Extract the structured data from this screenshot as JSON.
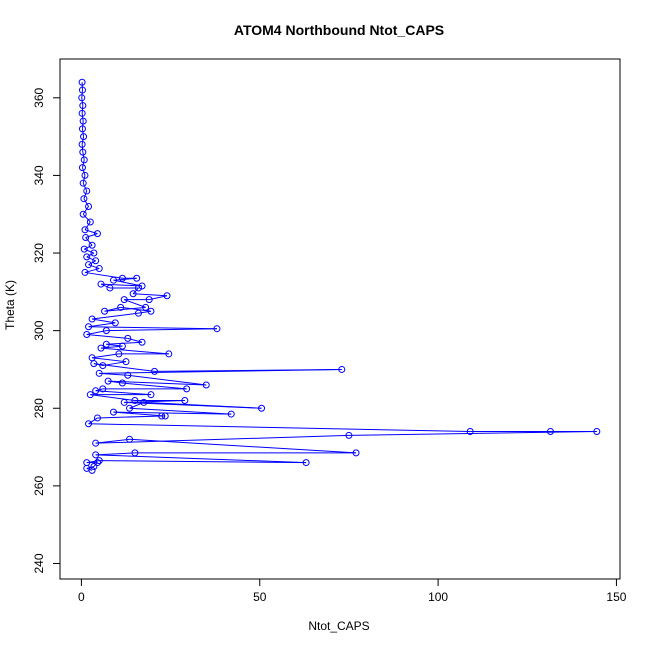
{
  "chart_data": {
    "type": "scatter",
    "title": "ATOM4 Northbound Ntot_CAPS",
    "xlabel": "Ntot_CAPS",
    "ylabel": "Theta (K)",
    "xlim": [
      -6,
      151
    ],
    "ylim": [
      236,
      370
    ],
    "xticks": [
      0,
      50,
      100,
      150
    ],
    "yticks": [
      240,
      260,
      280,
      300,
      320,
      340,
      360
    ],
    "marker": "open-circle",
    "connected": true,
    "series_color": "#0000ff",
    "grid": false,
    "series": [
      {
        "name": "",
        "points": [
          [
            0.2,
            364
          ],
          [
            0.3,
            362
          ],
          [
            0.1,
            360
          ],
          [
            0.4,
            358
          ],
          [
            0.2,
            356
          ],
          [
            0.5,
            354
          ],
          [
            0.3,
            352
          ],
          [
            0.6,
            350
          ],
          [
            0.2,
            348
          ],
          [
            0.4,
            346
          ],
          [
            0.8,
            344
          ],
          [
            0.3,
            342
          ],
          [
            1.0,
            340
          ],
          [
            0.5,
            338
          ],
          [
            1.5,
            336
          ],
          [
            0.7,
            334
          ],
          [
            2.0,
            332
          ],
          [
            0.5,
            330
          ],
          [
            2.5,
            328
          ],
          [
            1.0,
            326
          ],
          [
            4.5,
            325
          ],
          [
            1.2,
            324
          ],
          [
            3.0,
            322
          ],
          [
            0.8,
            321
          ],
          [
            3.5,
            320
          ],
          [
            1.5,
            319
          ],
          [
            4.0,
            318
          ],
          [
            2.0,
            317
          ],
          [
            5.0,
            316
          ],
          [
            1.0,
            315
          ],
          [
            11.5,
            313.5
          ],
          [
            15.5,
            313.5
          ],
          [
            9.0,
            313
          ],
          [
            17.0,
            311.5
          ],
          [
            5.5,
            312
          ],
          [
            8.0,
            311
          ],
          [
            16.0,
            311
          ],
          [
            14.5,
            309.5
          ],
          [
            24.0,
            309
          ],
          [
            19.0,
            308
          ],
          [
            12.0,
            308
          ],
          [
            18.0,
            306
          ],
          [
            6.5,
            305
          ],
          [
            11.0,
            306
          ],
          [
            19.5,
            305
          ],
          [
            16.0,
            304.5
          ],
          [
            3.0,
            303
          ],
          [
            9.5,
            302
          ],
          [
            2.0,
            301
          ],
          [
            38.0,
            300.5
          ],
          [
            7.0,
            300
          ],
          [
            1.5,
            299
          ],
          [
            13.0,
            298
          ],
          [
            17.0,
            297
          ],
          [
            7.0,
            296.5
          ],
          [
            11.5,
            296
          ],
          [
            5.5,
            295.5
          ],
          [
            24.5,
            294
          ],
          [
            10.5,
            294
          ],
          [
            3.0,
            293
          ],
          [
            12.5,
            292
          ],
          [
            6.0,
            291
          ],
          [
            3.5,
            291.5
          ],
          [
            20.5,
            289.5
          ],
          [
            73.0,
            290
          ],
          [
            5.0,
            289
          ],
          [
            13.0,
            288.5
          ],
          [
            35.0,
            286
          ],
          [
            7.5,
            287
          ],
          [
            11.5,
            286.5
          ],
          [
            29.5,
            285
          ],
          [
            6.0,
            285
          ],
          [
            4.0,
            284.5
          ],
          [
            19.5,
            283.5
          ],
          [
            2.5,
            283.5
          ],
          [
            15.0,
            282
          ],
          [
            29.0,
            282
          ],
          [
            12.0,
            281.5
          ],
          [
            50.5,
            280
          ],
          [
            17.5,
            281.5
          ],
          [
            13.5,
            280
          ],
          [
            42.0,
            278.5
          ],
          [
            9.0,
            279
          ],
          [
            23.5,
            278
          ],
          [
            22.5,
            278
          ],
          [
            4.5,
            277.5
          ],
          [
            2.0,
            276
          ],
          [
            109.0,
            274
          ],
          [
            131.5,
            274
          ],
          [
            144.5,
            274
          ],
          [
            75.0,
            273
          ],
          [
            4.0,
            271
          ],
          [
            13.5,
            272
          ],
          [
            77.0,
            268.5
          ],
          [
            15.0,
            268.5
          ],
          [
            4.0,
            268
          ],
          [
            63.0,
            266
          ],
          [
            5.0,
            266.5
          ],
          [
            1.5,
            266
          ],
          [
            4.5,
            266
          ],
          [
            3.5,
            265
          ],
          [
            1.5,
            264.5
          ],
          [
            3.0,
            264
          ]
        ]
      }
    ]
  }
}
